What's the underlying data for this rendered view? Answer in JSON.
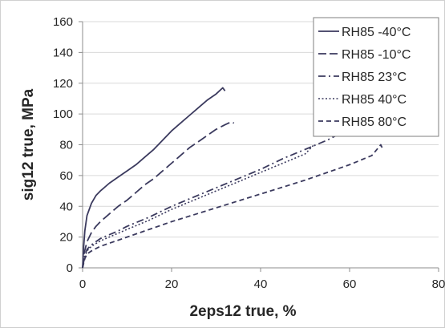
{
  "chart_data": {
    "type": "line",
    "title": "",
    "xlabel": "2eps12 true, %",
    "ylabel": "sig12 true, MPa",
    "xlim": [
      0,
      80
    ],
    "ylim": [
      0,
      160
    ],
    "xticks": [
      "0",
      "20",
      "40",
      "60",
      "80"
    ],
    "yticks": [
      "0",
      "20",
      "40",
      "60",
      "80",
      "100",
      "120",
      "140",
      "160"
    ],
    "grid": "horizontal",
    "legend_position": "top-right",
    "line_color": "#3b3a5e",
    "series": [
      {
        "name": "RH85 -40°C",
        "dash": "solid",
        "x": [
          0,
          0.2,
          0.5,
          1,
          2,
          3,
          4,
          6,
          8,
          10,
          12,
          14,
          16,
          18,
          20,
          22,
          24,
          26,
          28,
          30,
          31.5,
          32
        ],
        "y": [
          0,
          12,
          24,
          34,
          42,
          47,
          50,
          55,
          59,
          63,
          67,
          72,
          77,
          83,
          89,
          94,
          99,
          104,
          109,
          113,
          117,
          115
        ]
      },
      {
        "name": "RH85 -10°C",
        "dash": "long-dash",
        "x": [
          0,
          0.3,
          1,
          2,
          3,
          4,
          6,
          8,
          10,
          12,
          14,
          16,
          18,
          20,
          22,
          24,
          26,
          28,
          30,
          32,
          33.5,
          34
        ],
        "y": [
          0,
          9,
          17,
          23,
          27,
          30,
          35,
          40,
          44,
          49,
          54,
          58,
          63,
          68,
          73,
          78,
          82,
          86,
          90,
          93,
          95,
          94
        ]
      },
      {
        "name": "RH85 23°C",
        "dash": "dash-dot",
        "x": [
          0,
          0.5,
          1,
          2,
          4,
          6,
          8,
          10,
          15,
          20,
          25,
          30,
          35,
          40,
          45,
          50,
          55,
          59
        ],
        "y": [
          0,
          8,
          12,
          15,
          19,
          21.5,
          24,
          27,
          33,
          40,
          46,
          52,
          58,
          64,
          71,
          77,
          83,
          89
        ]
      },
      {
        "name": "RH85 40°C",
        "dash": "dotted",
        "x": [
          0,
          0.5,
          1,
          2,
          4,
          6,
          8,
          10,
          15,
          20,
          25,
          30,
          35,
          40,
          45,
          50,
          52
        ],
        "y": [
          0,
          7,
          11,
          14,
          17.5,
          20,
          22.5,
          25,
          31,
          38,
          44,
          50,
          56,
          62,
          68,
          74,
          80
        ]
      },
      {
        "name": "RH85 80°C",
        "dash": "short-dash",
        "x": [
          0,
          0.5,
          1,
          2,
          4,
          6,
          8,
          10,
          15,
          20,
          25,
          30,
          35,
          40,
          45,
          50,
          55,
          60,
          65,
          67,
          67.5
        ],
        "y": [
          0,
          6,
          9,
          11,
          14,
          16,
          18,
          20,
          25,
          30,
          34.5,
          39,
          43.5,
          48,
          52.5,
          57,
          62,
          67,
          73,
          80,
          77
        ]
      }
    ]
  }
}
